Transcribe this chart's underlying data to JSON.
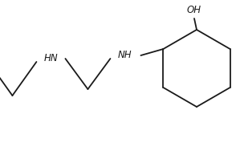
{
  "bg": "#ffffff",
  "lc": "#1a1a1a",
  "lw": 1.3,
  "fs": 8.5,
  "figsize": [
    2.99,
    1.93
  ],
  "dpi": 100,
  "xlim": [
    0,
    299
  ],
  "ylim": [
    0,
    193
  ]
}
